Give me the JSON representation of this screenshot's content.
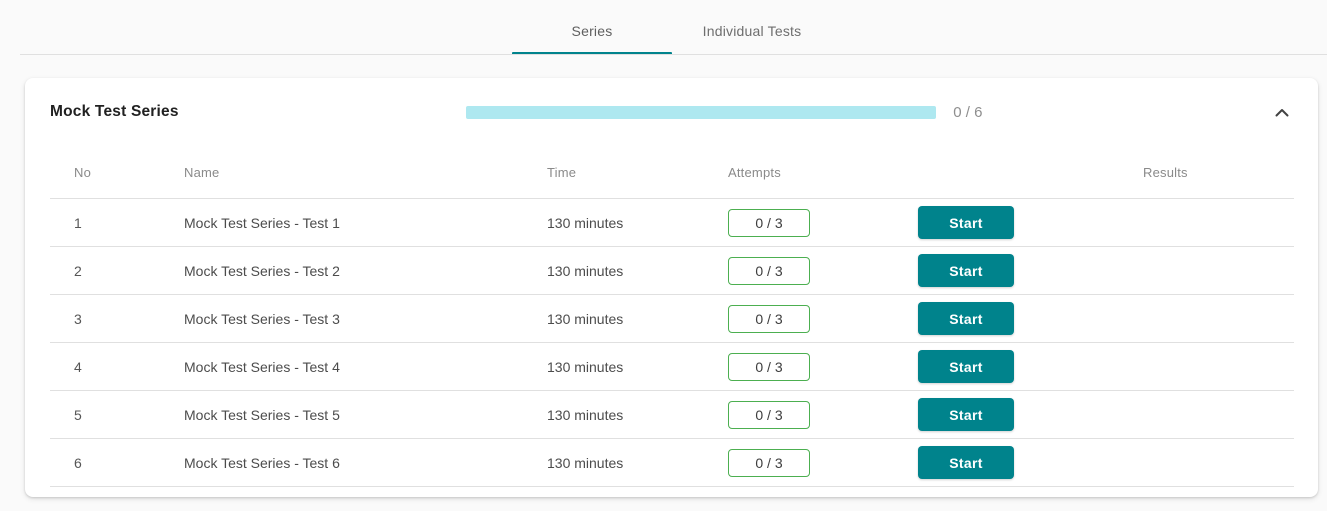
{
  "tabs": [
    {
      "label": "Series",
      "active": true
    },
    {
      "label": "Individual Tests",
      "active": false
    }
  ],
  "panel": {
    "title": "Mock Test Series",
    "progress_label": "0 / 6",
    "progress_percent": 0
  },
  "table": {
    "columns": [
      "No",
      "Name",
      "Time",
      "Attempts",
      "Results"
    ],
    "rows": [
      {
        "no": "1",
        "name": "Mock Test Series - Test 1",
        "time": "130 minutes",
        "attempts": "0 / 3",
        "action": "Start",
        "results": ""
      },
      {
        "no": "2",
        "name": "Mock Test Series - Test 2",
        "time": "130 minutes",
        "attempts": "0 / 3",
        "action": "Start",
        "results": ""
      },
      {
        "no": "3",
        "name": "Mock Test Series - Test 3",
        "time": "130 minutes",
        "attempts": "0 / 3",
        "action": "Start",
        "results": ""
      },
      {
        "no": "4",
        "name": "Mock Test Series - Test 4",
        "time": "130 minutes",
        "attempts": "0 / 3",
        "action": "Start",
        "results": ""
      },
      {
        "no": "5",
        "name": "Mock Test Series - Test 5",
        "time": "130 minutes",
        "attempts": "0 / 3",
        "action": "Start",
        "results": ""
      },
      {
        "no": "6",
        "name": "Mock Test Series - Test 6",
        "time": "130 minutes",
        "attempts": "0 / 3",
        "action": "Start",
        "results": ""
      }
    ]
  },
  "colors": {
    "accent": "#00838C",
    "progress_track": "#AEE8F0",
    "attempts_border": "#4CAF50"
  }
}
